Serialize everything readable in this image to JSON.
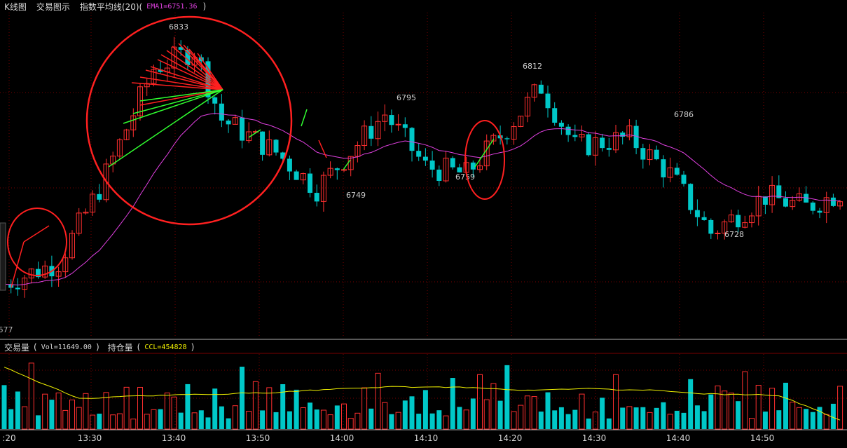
{
  "header": {
    "tab_kline": "K线图",
    "tab_trade": "交易图示",
    "indicator_label": "指数平均线(20)(",
    "indicator_value": "EMA1=6751.36",
    "indicator_close": ")"
  },
  "volume_header": {
    "label": "交易量",
    "open_paren": "(",
    "vol_value": "Vol=11649.00",
    "close_paren": ")",
    "oi_label": "持仓量",
    "oi_open": "(",
    "oi_value": "CCL=454828",
    "oi_close": ")"
  },
  "colors": {
    "up": "#ff2f2f",
    "down": "#00c8c8",
    "ema": "#e040e0",
    "oi_line": "#f0f000",
    "grid": "#7a0000",
    "circle": "#ff2020",
    "arrow_red": "#ff2020",
    "arrow_green": "#30ff30",
    "text": "#d8d8d8"
  },
  "chart_data": {
    "type": "candlestick",
    "x_tick_labels": [
      ":20",
      "13:30",
      "13:40",
      "13:50",
      "14:00",
      "14:10",
      "14:20",
      "14:30",
      "14:40",
      "14:50"
    ],
    "y_edge_label": "677",
    "price_annotations": [
      "6833",
      "6812",
      "6795",
      "6786",
      "6759",
      "6749",
      "6728"
    ],
    "ohlc_sample": [
      {
        "o": 6700,
        "h": 6704,
        "l": 6690,
        "c": 6694
      },
      {
        "o": 6693,
        "h": 6705,
        "l": 6690,
        "c": 6702
      },
      {
        "o": 6702,
        "h": 6712,
        "l": 6700,
        "c": 6710
      },
      {
        "o": 6708,
        "h": 6712,
        "l": 6702,
        "c": 6706
      },
      {
        "o": 6704,
        "h": 6726,
        "l": 6702,
        "c": 6724
      },
      {
        "o": 6722,
        "h": 6735,
        "l": 6720,
        "c": 6733
      },
      {
        "o": 6733,
        "h": 6742,
        "l": 6728,
        "c": 6740
      },
      {
        "o": 6740,
        "h": 6760,
        "l": 6738,
        "c": 6756
      },
      {
        "o": 6758,
        "h": 6770,
        "l": 6756,
        "c": 6768
      },
      {
        "o": 6768,
        "h": 6784,
        "l": 6765,
        "c": 6781
      },
      {
        "o": 6781,
        "h": 6800,
        "l": 6778,
        "c": 6797
      },
      {
        "o": 6797,
        "h": 6825,
        "l": 6795,
        "c": 6822
      },
      {
        "o": 6822,
        "h": 6833,
        "l": 6815,
        "c": 6830
      },
      {
        "o": 6830,
        "h": 6832,
        "l": 6810,
        "c": 6813
      },
      {
        "o": 6813,
        "h": 6815,
        "l": 6778,
        "c": 6782
      },
      {
        "o": 6782,
        "h": 6790,
        "l": 6772,
        "c": 6778
      },
      {
        "o": 6778,
        "h": 6790,
        "l": 6775,
        "c": 6788
      },
      {
        "o": 6788,
        "h": 6792,
        "l": 6770,
        "c": 6772
      },
      {
        "o": 6772,
        "h": 6780,
        "l": 6750,
        "c": 6754
      },
      {
        "o": 6754,
        "h": 6760,
        "l": 6749,
        "c": 6752
      },
      {
        "o": 6752,
        "h": 6772,
        "l": 6750,
        "c": 6770
      },
      {
        "o": 6770,
        "h": 6795,
        "l": 6768,
        "c": 6792
      },
      {
        "o": 6792,
        "h": 6794,
        "l": 6775,
        "c": 6778
      },
      {
        "o": 6778,
        "h": 6780,
        "l": 6760,
        "c": 6762
      },
      {
        "o": 6762,
        "h": 6768,
        "l": 6759,
        "c": 6764
      },
      {
        "o": 6764,
        "h": 6778,
        "l": 6762,
        "c": 6775
      },
      {
        "o": 6775,
        "h": 6812,
        "l": 6774,
        "c": 6808
      },
      {
        "o": 6808,
        "h": 6812,
        "l": 6785,
        "c": 6788
      },
      {
        "o": 6788,
        "h": 6790,
        "l": 6766,
        "c": 6770
      },
      {
        "o": 6770,
        "h": 6786,
        "l": 6768,
        "c": 6783
      },
      {
        "o": 6783,
        "h": 6786,
        "l": 6760,
        "c": 6762
      },
      {
        "o": 6762,
        "h": 6768,
        "l": 6728,
        "c": 6732
      },
      {
        "o": 6732,
        "h": 6752,
        "l": 6730,
        "c": 6748
      },
      {
        "o": 6748,
        "h": 6750,
        "l": 6738,
        "c": 6742
      },
      {
        "o": 6742,
        "h": 6752,
        "l": 6738,
        "c": 6749
      }
    ],
    "volume_sample": [
      240,
      110,
      170,
      90,
      200,
      60,
      140,
      95,
      130,
      75,
      160,
      90,
      115,
      70,
      85,
      120,
      60,
      95,
      140,
      60,
      170,
      90,
      80,
      65,
      105,
      95,
      75,
      135,
      50,
      80,
      60,
      150,
      100,
      60,
      100
    ],
    "ylim_price": [
      6677,
      6840
    ]
  }
}
